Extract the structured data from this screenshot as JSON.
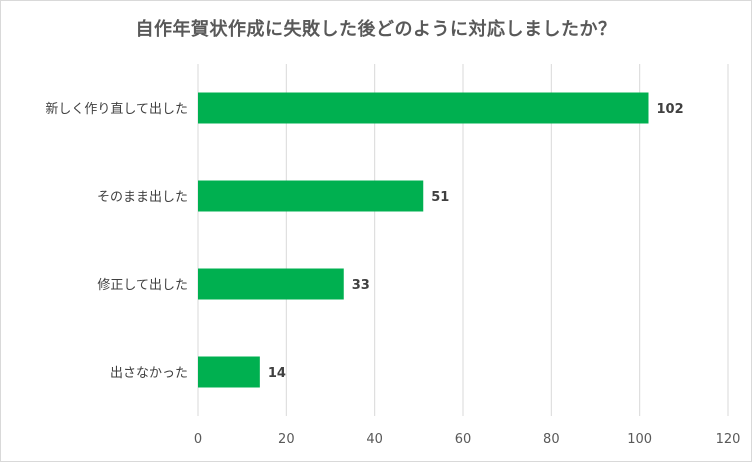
{
  "chart_data": {
    "type": "bar",
    "orientation": "horizontal",
    "title": "自作年賀状作成に失敗した後どのように対応しましたか？",
    "categories": [
      "新しく作り直して出した",
      "そのまま出した",
      "修正して出した",
      "出さなかった"
    ],
    "values": [
      102,
      51,
      33,
      14
    ],
    "xlim": [
      0,
      120
    ],
    "xticks": [
      0,
      20,
      40,
      60,
      80,
      100,
      120
    ],
    "grid": true,
    "legend": "none",
    "data_labels": true,
    "bar_color": "#00b050",
    "grid_color": "#d9d9d9"
  }
}
